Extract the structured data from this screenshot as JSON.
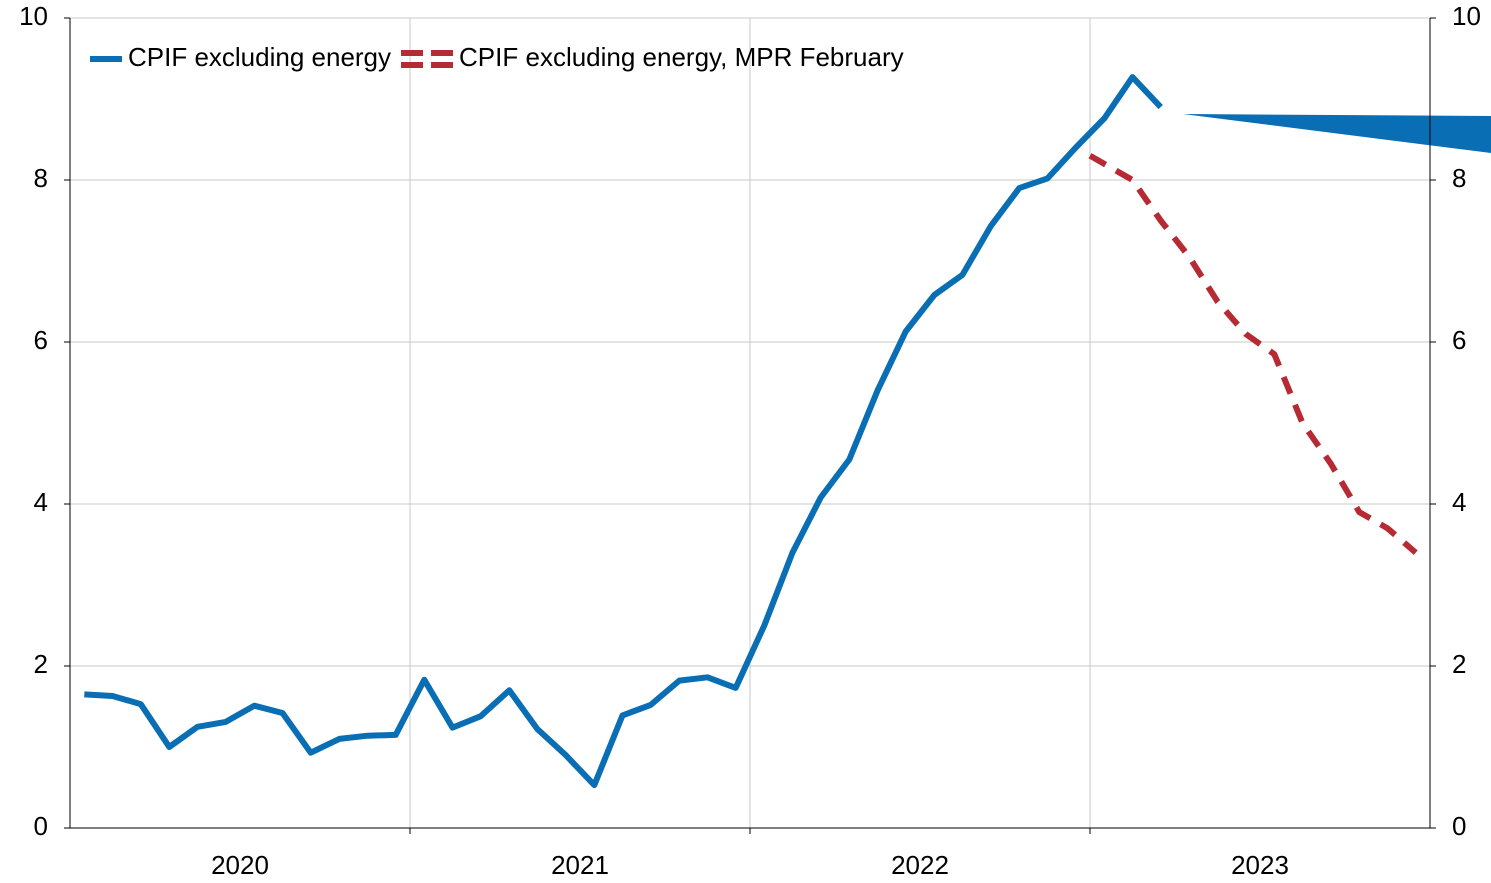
{
  "chart_data": {
    "type": "line",
    "xlim": [
      2020,
      2024
    ],
    "xticks": [
      {
        "value": 2020.5,
        "label": "2020"
      },
      {
        "value": 2021.5,
        "label": "2021"
      },
      {
        "value": 2022.5,
        "label": "2022"
      },
      {
        "value": 2023.5,
        "label": "2023"
      }
    ],
    "xgrid": [
      2021,
      2022,
      2023
    ],
    "ylim": [
      0,
      10
    ],
    "yticks": [
      0,
      2,
      4,
      6,
      8,
      10
    ],
    "y2lim": [
      0,
      10
    ],
    "y2ticks": [
      0,
      2,
      4,
      6,
      8,
      10
    ],
    "grid": true,
    "legend": "top-left",
    "series": [
      {
        "name": "CPIF excluding energy",
        "color": "#0a6eb4",
        "style": "solid",
        "x": [
          2020.042,
          2020.125,
          2020.208,
          2020.292,
          2020.375,
          2020.458,
          2020.542,
          2020.625,
          2020.708,
          2020.792,
          2020.875,
          2020.958,
          2021.042,
          2021.125,
          2021.208,
          2021.292,
          2021.375,
          2021.458,
          2021.542,
          2021.625,
          2021.708,
          2021.792,
          2021.875,
          2021.958,
          2022.042,
          2022.125,
          2022.208,
          2022.292,
          2022.375,
          2022.458,
          2022.542,
          2022.625,
          2022.708,
          2022.792,
          2022.875,
          2022.958,
          2023.042,
          2023.125,
          2023.208
        ],
        "values": [
          1.65,
          1.63,
          1.53,
          1.0,
          1.25,
          1.31,
          1.51,
          1.42,
          0.93,
          1.1,
          1.14,
          1.15,
          1.83,
          1.24,
          1.38,
          1.7,
          1.22,
          0.9,
          0.53,
          1.39,
          1.52,
          1.82,
          1.86,
          1.73,
          2.5,
          3.4,
          4.08,
          4.55,
          5.4,
          6.13,
          6.58,
          6.83,
          7.43,
          7.9,
          8.02,
          8.4,
          8.76,
          9.27,
          8.9
        ]
      },
      {
        "name": "CPIF excluding energy, MPR February",
        "color": "#b52a33",
        "style": "dashed",
        "x": [
          2023.0,
          2023.125,
          2023.208,
          2023.292,
          2023.375,
          2023.458,
          2023.542,
          2023.625,
          2023.708,
          2023.792,
          2023.875,
          2023.958
        ],
        "values": [
          8.3,
          8.0,
          7.5,
          7.05,
          6.5,
          6.1,
          5.85,
          5.0,
          4.5,
          3.9,
          3.7,
          3.4
        ]
      }
    ]
  }
}
